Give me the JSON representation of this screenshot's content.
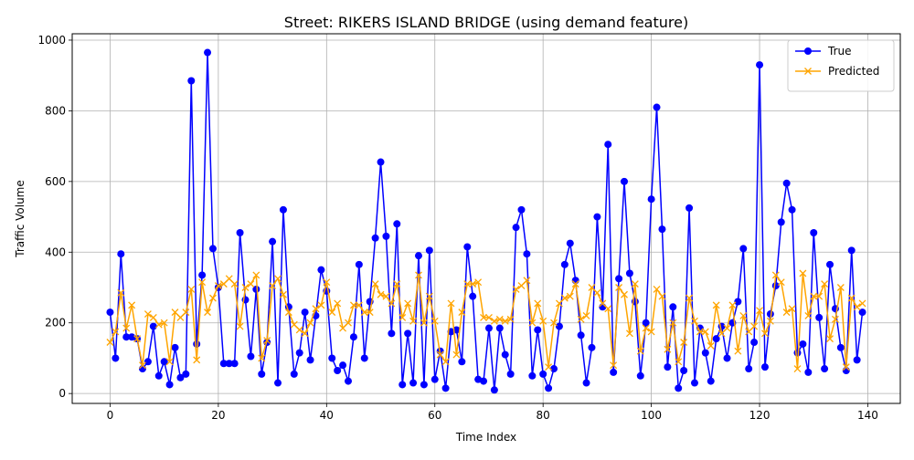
{
  "chart_data": {
    "type": "line",
    "title": "Street: RIKERS ISLAND BRIDGE (using demand feature)",
    "xlabel": "Time Index",
    "ylabel": "Traffic Volume",
    "xlim": [
      -7,
      146
    ],
    "ylim": [
      -28,
      1018
    ],
    "xticks": [
      0,
      20,
      40,
      60,
      80,
      100,
      120,
      140
    ],
    "yticks": [
      0,
      200,
      400,
      600,
      800,
      1000
    ],
    "grid": true,
    "legend": "top-right",
    "series": [
      {
        "name": "True",
        "color": "#0000ff",
        "marker": "circle",
        "values": [
          230,
          100,
          395,
          160,
          160,
          155,
          70,
          90,
          190,
          50,
          90,
          25,
          130,
          45,
          55,
          885,
          140,
          335,
          965,
          410,
          300,
          85,
          85,
          85,
          455,
          265,
          105,
          295,
          55,
          145,
          430,
          30,
          520,
          245,
          55,
          115,
          230,
          95,
          220,
          350,
          290,
          100,
          65,
          80,
          35,
          160,
          365,
          100,
          260,
          440,
          655,
          445,
          170,
          480,
          25,
          170,
          30,
          390,
          25,
          405,
          40,
          120,
          15,
          175,
          180,
          90,
          415,
          275,
          40,
          35,
          185,
          10,
          185,
          110,
          55,
          470,
          520,
          395,
          50,
          180,
          55,
          15,
          70,
          190,
          365,
          425,
          320,
          165,
          30,
          130,
          500,
          245,
          705,
          60,
          325,
          600,
          340,
          260,
          50,
          200,
          550,
          810,
          465,
          75,
          245,
          15,
          65,
          525,
          30,
          185,
          115,
          35,
          155,
          190,
          100,
          200,
          260,
          410,
          70,
          145,
          930,
          75,
          225,
          305,
          485,
          595,
          520,
          115,
          140,
          60,
          455,
          215,
          70,
          365,
          240,
          130,
          65,
          405,
          95,
          230
        ]
      },
      {
        "name": "Predicted",
        "color": "#ffa500",
        "marker": "x",
        "values": [
          145,
          175,
          285,
          185,
          250,
          155,
          80,
          225,
          215,
          195,
          200,
          90,
          230,
          215,
          230,
          295,
          95,
          315,
          230,
          270,
          305,
          310,
          325,
          310,
          190,
          300,
          310,
          335,
          100,
          150,
          305,
          325,
          280,
          230,
          195,
          180,
          170,
          200,
          240,
          250,
          315,
          230,
          255,
          185,
          200,
          250,
          250,
          230,
          230,
          310,
          280,
          275,
          255,
          310,
          215,
          255,
          205,
          335,
          200,
          275,
          205,
          110,
          90,
          255,
          110,
          230,
          310,
          310,
          315,
          215,
          215,
          205,
          210,
          205,
          210,
          295,
          305,
          320,
          200,
          255,
          205,
          75,
          200,
          255,
          270,
          275,
          310,
          210,
          220,
          300,
          285,
          255,
          240,
          80,
          300,
          280,
          170,
          310,
          120,
          185,
          175,
          295,
          275,
          125,
          200,
          90,
          145,
          270,
          205,
          175,
          175,
          135,
          250,
          170,
          185,
          250,
          120,
          220,
          175,
          190,
          235,
          170,
          205,
          335,
          315,
          230,
          240,
          70,
          340,
          220,
          275,
          275,
          310,
          155,
          210,
          300,
          75,
          270,
          245,
          255
        ]
      }
    ]
  }
}
